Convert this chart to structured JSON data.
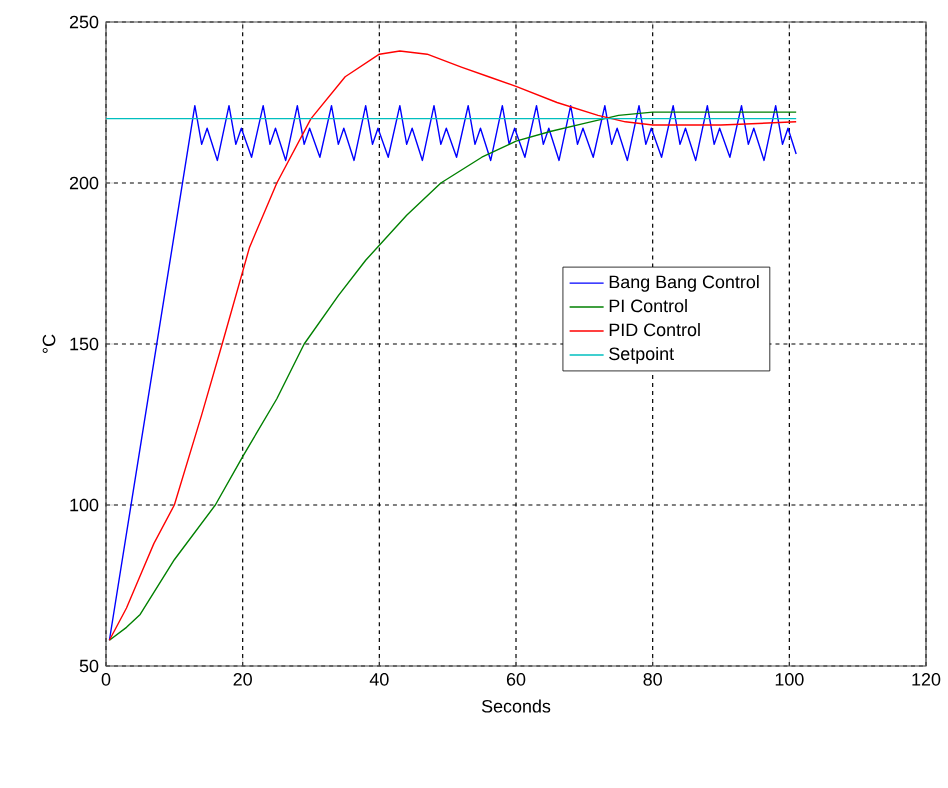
{
  "chart_data": {
    "type": "line",
    "xlabel": "Seconds",
    "ylabel": "°C",
    "xlim": [
      0,
      120
    ],
    "ylim": [
      50,
      250
    ],
    "xticks": [
      0,
      20,
      40,
      60,
      80,
      100,
      120
    ],
    "yticks": [
      50,
      100,
      150,
      200,
      250
    ],
    "grid": true,
    "legend": "right",
    "series": [
      {
        "name": "Bang Bang Control",
        "color": "#0000ff",
        "x": [
          0.5,
          13,
          14,
          14.8,
          16.3,
          18,
          19,
          19.8,
          21.3,
          23,
          24,
          24.8,
          26.3,
          28,
          29,
          29.8,
          31.3,
          33,
          34,
          34.8,
          36.3,
          38,
          39,
          39.8,
          41.3,
          43,
          44,
          44.8,
          46.3,
          48,
          49,
          49.8,
          51.3,
          53,
          54,
          54.8,
          56.3,
          58,
          59,
          59.8,
          61.3,
          63,
          64,
          64.8,
          66.3,
          68,
          69,
          69.8,
          71.3,
          73,
          74,
          74.8,
          76.3,
          78,
          79,
          79.8,
          81.3,
          83,
          84,
          84.8,
          86.3,
          88,
          89,
          89.8,
          91.3,
          93,
          94,
          94.8,
          96.3,
          98,
          99,
          99.8,
          101
        ],
        "values": [
          58,
          224,
          212,
          217,
          207,
          224,
          212,
          217,
          208,
          224,
          212,
          217,
          207,
          224,
          212,
          217,
          208,
          224,
          212,
          217,
          207,
          224,
          212,
          217,
          208,
          224,
          212,
          217,
          207,
          224,
          212,
          217,
          208,
          224,
          212,
          217,
          207,
          224,
          212,
          217,
          208,
          224,
          212,
          217,
          207,
          224,
          212,
          217,
          208,
          224,
          212,
          217,
          207,
          224,
          212,
          217,
          208,
          224,
          212,
          217,
          207,
          224,
          212,
          217,
          208,
          224,
          212,
          217,
          207,
          224,
          212,
          217,
          209
        ]
      },
      {
        "name": "PI Control",
        "color": "#008000",
        "x": [
          0.5,
          3,
          5,
          10,
          16,
          20,
          25,
          29,
          34,
          38,
          44,
          49,
          55,
          60,
          65,
          70,
          75,
          80,
          90,
          101
        ],
        "values": [
          58,
          62,
          66,
          83,
          100,
          115,
          133,
          150,
          165,
          176,
          190,
          200,
          208,
          213,
          216,
          218.5,
          221,
          222,
          222,
          222
        ]
      },
      {
        "name": "PID Control",
        "color": "#ff0000",
        "x": [
          0.5,
          3,
          5,
          7,
          10,
          14,
          17,
          21,
          25,
          30,
          35,
          40,
          43,
          47,
          52,
          56,
          60,
          66,
          72,
          76,
          80,
          90,
          101
        ],
        "values": [
          58,
          68,
          78,
          88,
          100,
          128,
          150,
          180,
          200,
          220,
          233,
          240,
          241,
          240,
          236,
          233,
          230,
          225,
          221,
          219,
          218,
          218,
          219
        ]
      },
      {
        "name": "Setpoint",
        "color": "#00bfbf",
        "x": [
          0,
          101
        ],
        "values": [
          220,
          220
        ]
      }
    ]
  }
}
